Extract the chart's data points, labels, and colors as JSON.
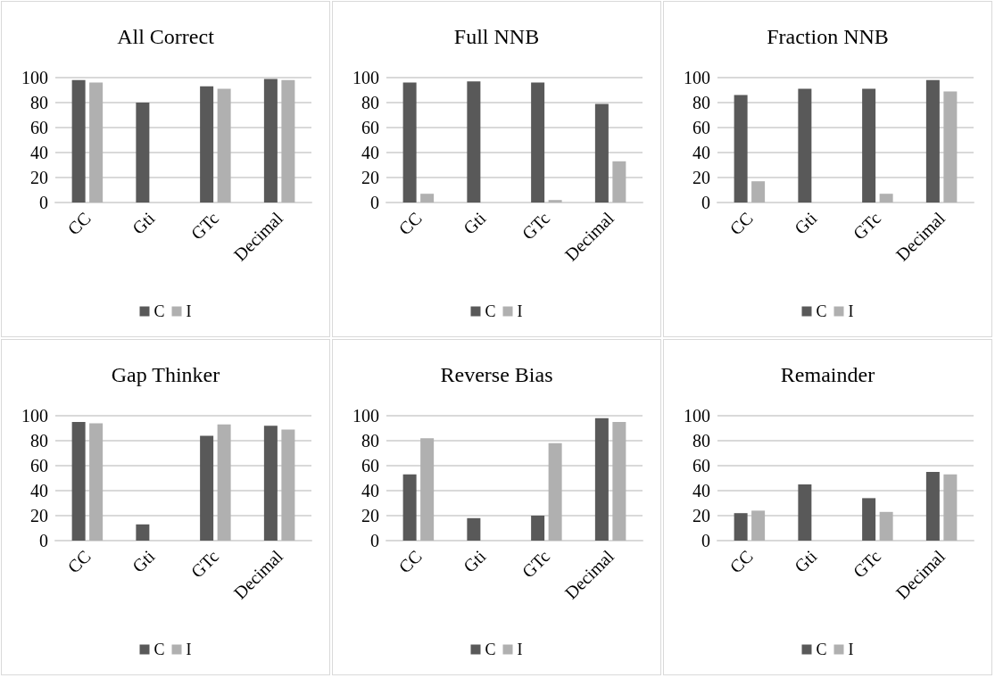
{
  "chart_data": [
    {
      "type": "bar",
      "title": "All Correct",
      "categories": [
        "CC",
        "Gti",
        "GTc",
        "Decimal"
      ],
      "series": [
        {
          "name": "C",
          "color": "#595959",
          "values": [
            98,
            80,
            93,
            99
          ]
        },
        {
          "name": "I",
          "color": "#b0b0b0",
          "values": [
            96,
            0,
            91,
            98
          ]
        }
      ],
      "ylim": [
        0,
        100
      ],
      "yticks": [
        0,
        20,
        40,
        60,
        80,
        100
      ],
      "grid": "y",
      "legend": "bottom"
    },
    {
      "type": "bar",
      "title": "Full NNB",
      "categories": [
        "CC",
        "Gti",
        "GTc",
        "Decimal"
      ],
      "series": [
        {
          "name": "C",
          "color": "#595959",
          "values": [
            96,
            97,
            96,
            79
          ]
        },
        {
          "name": "I",
          "color": "#b0b0b0",
          "values": [
            7,
            0,
            2,
            33
          ]
        }
      ],
      "ylim": [
        0,
        100
      ],
      "yticks": [
        0,
        20,
        40,
        60,
        80,
        100
      ],
      "grid": "y",
      "legend": "bottom"
    },
    {
      "type": "bar",
      "title": "Fraction NNB",
      "categories": [
        "CC",
        "Gti",
        "GTc",
        "Decimal"
      ],
      "series": [
        {
          "name": "C",
          "color": "#595959",
          "values": [
            86,
            91,
            91,
            98
          ]
        },
        {
          "name": "I",
          "color": "#b0b0b0",
          "values": [
            17,
            0,
            7,
            89
          ]
        }
      ],
      "ylim": [
        0,
        100
      ],
      "yticks": [
        0,
        20,
        40,
        60,
        80,
        100
      ],
      "grid": "y",
      "legend": "bottom"
    },
    {
      "type": "bar",
      "title": "Gap Thinker",
      "categories": [
        "CC",
        "Gti",
        "GTc",
        "Decimal"
      ],
      "series": [
        {
          "name": "C",
          "color": "#595959",
          "values": [
            95,
            13,
            84,
            92
          ]
        },
        {
          "name": "I",
          "color": "#b0b0b0",
          "values": [
            94,
            0,
            93,
            89
          ]
        }
      ],
      "ylim": [
        0,
        100
      ],
      "yticks": [
        0,
        20,
        40,
        60,
        80,
        100
      ],
      "grid": "y",
      "legend": "bottom"
    },
    {
      "type": "bar",
      "title": "Reverse Bias",
      "categories": [
        "CC",
        "Gti",
        "GTc",
        "Decimal"
      ],
      "series": [
        {
          "name": "C",
          "color": "#595959",
          "values": [
            53,
            18,
            20,
            98
          ]
        },
        {
          "name": "I",
          "color": "#b0b0b0",
          "values": [
            82,
            0,
            78,
            95
          ]
        }
      ],
      "ylim": [
        0,
        100
      ],
      "yticks": [
        0,
        20,
        40,
        60,
        80,
        100
      ],
      "grid": "y",
      "legend": "bottom"
    },
    {
      "type": "bar",
      "title": "Remainder",
      "categories": [
        "CC",
        "Gti",
        "GTc",
        "Decimal"
      ],
      "series": [
        {
          "name": "C",
          "color": "#595959",
          "values": [
            22,
            45,
            34,
            55
          ]
        },
        {
          "name": "I",
          "color": "#b0b0b0",
          "values": [
            24,
            0,
            23,
            53
          ]
        }
      ],
      "ylim": [
        0,
        100
      ],
      "yticks": [
        0,
        20,
        40,
        60,
        80,
        100
      ],
      "grid": "y",
      "legend": "bottom"
    }
  ]
}
